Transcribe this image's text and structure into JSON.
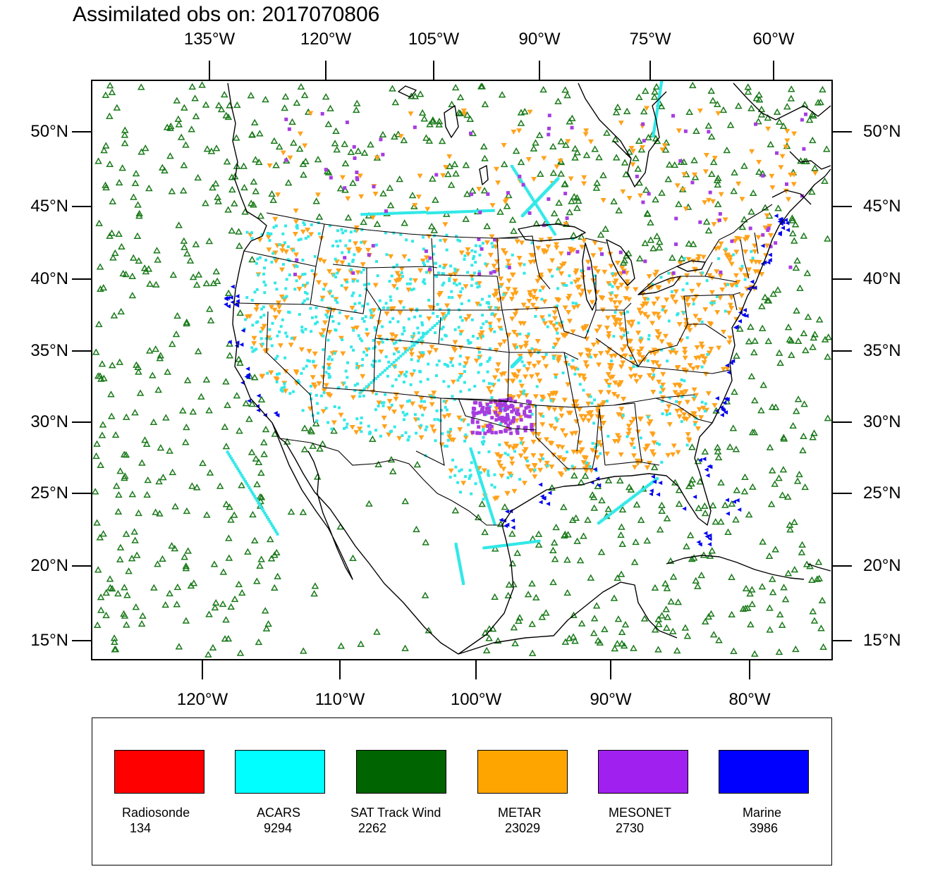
{
  "title": "Assimilated obs on: 2017070806",
  "top_axis_labels": [
    "135°W",
    "120°W",
    "105°W",
    "90°W",
    "75°W",
    "60°W"
  ],
  "bottom_axis_labels": [
    "120°W",
    "110°W",
    "100°W",
    "90°W",
    "80°W"
  ],
  "left_axis_labels": [
    "50°N",
    "45°N",
    "40°N",
    "35°N",
    "30°N",
    "25°N",
    "20°N",
    "15°N"
  ],
  "right_axis_labels": [
    "50°N",
    "45°N",
    "40°N",
    "35°N",
    "30°N",
    "25°N",
    "20°N",
    "15°N"
  ],
  "legend": [
    {
      "name": "Radiosonde",
      "count": "134",
      "color": "#ff0000"
    },
    {
      "name": "ACARS",
      "count": "9294",
      "color": "#00ffff"
    },
    {
      "name": "SAT Track Wind",
      "count": "2262",
      "color": "#006400"
    },
    {
      "name": "METAR",
      "count": "23029",
      "color": "#ffa500"
    },
    {
      "name": "MESONET",
      "count": "2730",
      "color": "#a020f0"
    },
    {
      "name": "Marine",
      "count": "3986",
      "color": "#0000ff"
    }
  ],
  "colors": {
    "acars": "#33e8e8",
    "sat_track_wind": "#1a7a1a",
    "metar": "#ffa21a",
    "mesonet": "#a63ce0",
    "marine": "#0000ee"
  }
}
